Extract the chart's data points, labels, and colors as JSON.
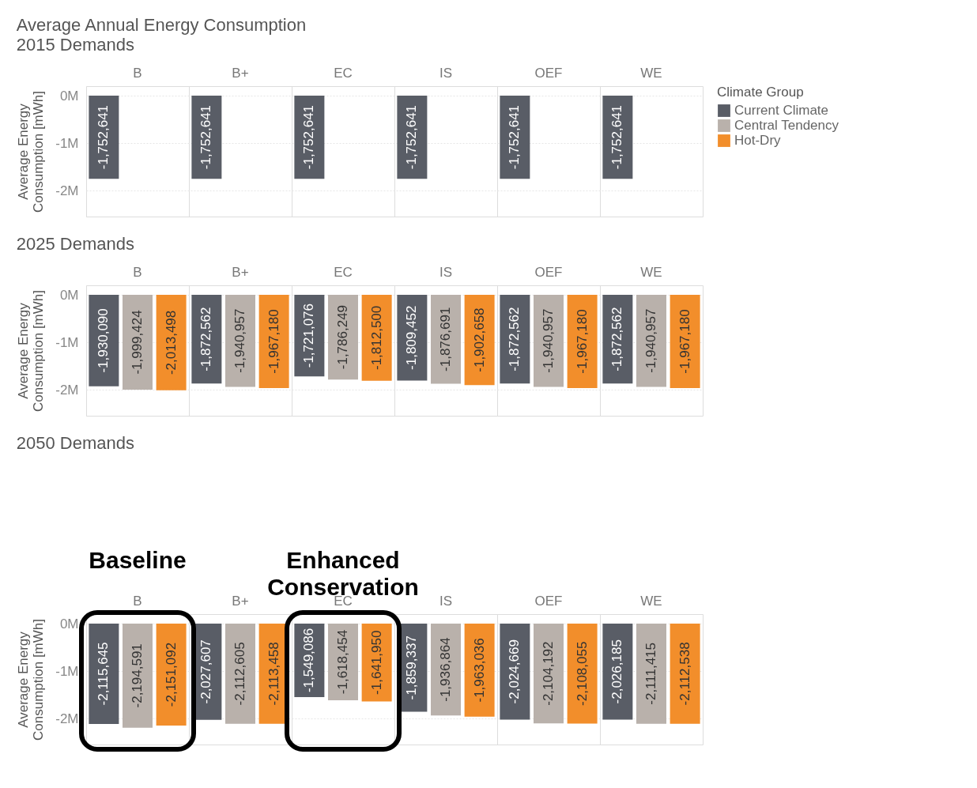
{
  "chart_data": [
    {
      "type": "bar",
      "title": "Average Annual Energy Consumption",
      "subtitle": "2015 Demands",
      "ylabel": "Average Energy Consumption [mWh]",
      "legend_title": "Climate Group",
      "legend": "right",
      "categories": [
        "B",
        "B+",
        "EC",
        "IS",
        "OEF",
        "WE"
      ],
      "series": [
        {
          "name": "Current Climate",
          "color": "#595d66",
          "values": [
            -1752641,
            -1752641,
            -1752641,
            -1752641,
            -1752641,
            -1752641
          ],
          "value_labels": [
            "-1,752,641",
            "-1,752,641",
            "-1,752,641",
            "-1,752,641",
            "-1,752,641",
            "-1,752,641"
          ]
        },
        {
          "name": "Central Tendency",
          "color": "#b9b1ab",
          "values": [
            null,
            null,
            null,
            null,
            null,
            null
          ]
        },
        {
          "name": "Hot-Dry",
          "color": "#f28e2b",
          "values": [
            null,
            null,
            null,
            null,
            null,
            null
          ]
        }
      ],
      "ylim": [
        -2550000,
        200000
      ],
      "yticks": [
        {
          "value": 0,
          "label": "0M"
        },
        {
          "value": -1000000,
          "label": "-1M"
        },
        {
          "value": -2000000,
          "label": "-2M"
        }
      ],
      "grid": "y"
    },
    {
      "type": "bar",
      "title": "2025 Demands",
      "ylabel": "Average Energy Consumption [mWh]",
      "categories": [
        "B",
        "B+",
        "EC",
        "IS",
        "OEF",
        "WE"
      ],
      "series": [
        {
          "color": "#595d66",
          "values": [
            -1930090,
            -1872562,
            -1721076,
            -1809452,
            -1872562,
            -1872562
          ],
          "value_labels": [
            "-1,930,090",
            "-1,872,562",
            "-1,721,076",
            "-1,809,452",
            "-1,872,562",
            "-1,872,562"
          ]
        },
        {
          "color": "#b9b1ab",
          "values": [
            -1999424,
            -1940957,
            -1786249,
            -1876691,
            -1940957,
            -1940957
          ],
          "value_labels": [
            "-1,999,424",
            "-1,940,957",
            "-1,786,249",
            "-1,876,691",
            "-1,940,957",
            "-1,940,957"
          ]
        },
        {
          "color": "#f28e2b",
          "values": [
            -2013498,
            -1967180,
            -1812500,
            -1902658,
            -1967180,
            -1967180
          ],
          "value_labels": [
            "-2,013,498",
            "-1,967,180",
            "-1,812,500",
            "-1,902,658",
            "-1,967,180",
            "-1,967,180"
          ]
        }
      ],
      "ylim": [
        -2550000,
        200000
      ],
      "yticks": [
        {
          "value": 0,
          "label": "0M"
        },
        {
          "value": -1000000,
          "label": "-1M"
        },
        {
          "value": -2000000,
          "label": "-2M"
        }
      ],
      "grid": "y"
    },
    {
      "type": "bar",
      "title": "2050 Demands",
      "ylabel": "Average Energy Consumption [mWh]",
      "categories": [
        "B",
        "B+",
        "EC",
        "IS",
        "OEF",
        "WE"
      ],
      "series": [
        {
          "color": "#595d66",
          "values": [
            -2115645,
            -2027607,
            -1549086,
            -1859337,
            -2024669,
            -2026185
          ],
          "value_labels": [
            "-2,115,645",
            "-2,027,607",
            "-1,549,086",
            "-1,859,337",
            "-2,024,669",
            "-2,026,185"
          ]
        },
        {
          "color": "#b9b1ab",
          "values": [
            -2194591,
            -2112605,
            -1618454,
            -1936864,
            -2104192,
            -2111415
          ],
          "value_labels": [
            "-2,194,591",
            "-2,112,605",
            "-1,618,454",
            "-1,936,864",
            "-2,104,192",
            "-2,111,415"
          ]
        },
        {
          "color": "#f28e2b",
          "values": [
            -2151092,
            -2113458,
            -1641950,
            -1963036,
            -2108055,
            -2112538
          ],
          "value_labels": [
            "-2,151,092",
            "-2,113,458",
            "-1,641,950",
            "-1,963,036",
            "-2,108,055",
            "-2,112,538"
          ]
        }
      ],
      "ylim": [
        -2550000,
        200000
      ],
      "yticks": [
        {
          "value": 0,
          "label": "0M"
        },
        {
          "value": -1000000,
          "label": "-1M"
        },
        {
          "value": -2000000,
          "label": "-2M"
        }
      ],
      "grid": "y",
      "annotations": [
        "Baseline",
        "Enhanced Conservation"
      ]
    }
  ]
}
